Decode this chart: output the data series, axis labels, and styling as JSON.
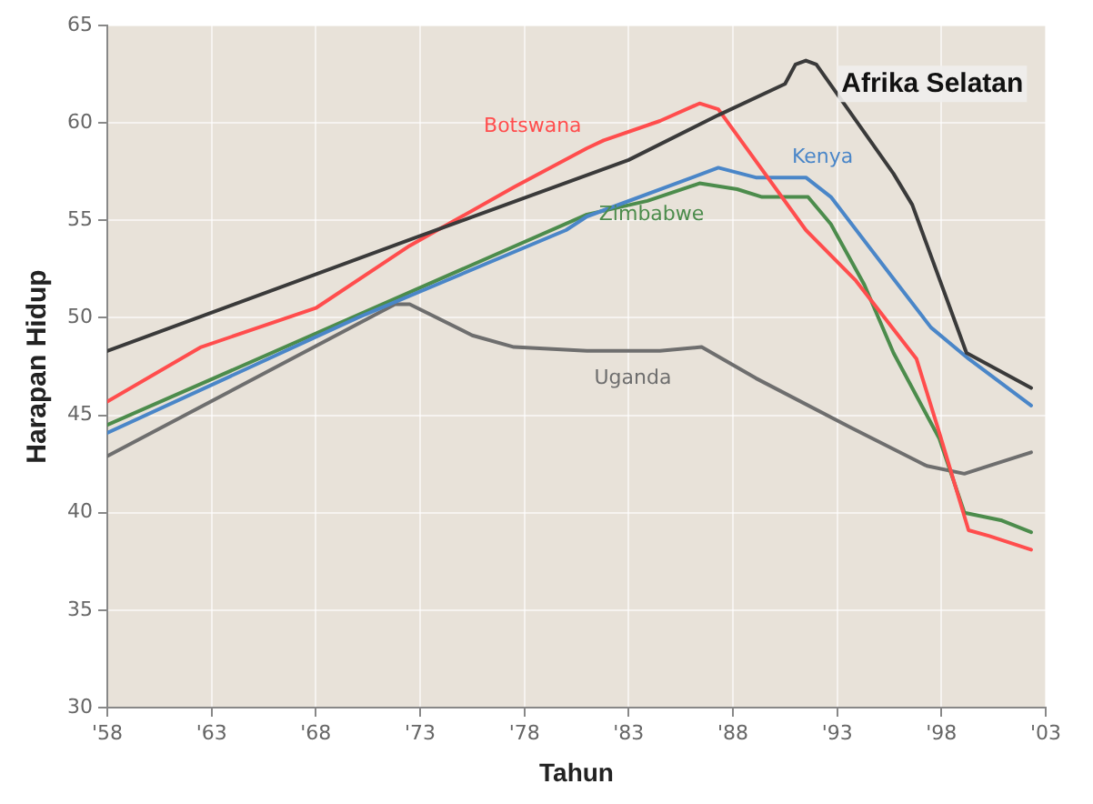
{
  "chart_data": {
    "type": "line",
    "xlabel": "Tahun",
    "ylabel": "Harapan Hidup",
    "xlim": [
      1958,
      2003
    ],
    "ylim": [
      30,
      65
    ],
    "xticks": [
      {
        "value": 1958,
        "label": "'58"
      },
      {
        "value": 1963,
        "label": "'63"
      },
      {
        "value": 1968,
        "label": "'68"
      },
      {
        "value": 1973,
        "label": "'73"
      },
      {
        "value": 1978,
        "label": "'78"
      },
      {
        "value": 1983,
        "label": "'83"
      },
      {
        "value": 1988,
        "label": "'88"
      },
      {
        "value": 1993,
        "label": "'93"
      },
      {
        "value": 1998,
        "label": "'98"
      },
      {
        "value": 2003,
        "label": "'03"
      }
    ],
    "yticks": [
      30,
      35,
      40,
      45,
      50,
      55,
      60,
      65
    ],
    "grid": true,
    "legend": false,
    "marker": "none",
    "line_style": "solid",
    "series": [
      {
        "name": "Afrika Selatan",
        "color": "#3a3a3a",
        "x": [
          1958,
          1973,
          1983,
          1987.3,
          1990.5,
          1991,
          1991.5,
          1992,
          1995.7,
          1996.6,
          1999.2,
          2002.3
        ],
        "values": [
          48.3,
          54.2,
          58.1,
          60.4,
          62,
          63,
          63.2,
          63,
          57.4,
          55.8,
          48.2,
          46.4
        ]
      },
      {
        "name": "Botswana",
        "color": "#ff4d4d",
        "x": [
          1958,
          1962.5,
          1968,
          1972.5,
          1977.5,
          1981,
          1981.8,
          1984.5,
          1986.4,
          1987.3,
          1991.5,
          1993.9,
          1996.8,
          1997.9,
          1999.3,
          2000.3,
          2002.3
        ],
        "values": [
          45.7,
          48.5,
          50.5,
          53.7,
          56.7,
          58.7,
          59.1,
          60.1,
          61,
          60.7,
          54.5,
          51.9,
          47.9,
          44.1,
          39.1,
          38.8,
          38.1
        ]
      },
      {
        "name": "Kenya",
        "color": "#4a86c8",
        "x": [
          1958,
          1970,
          1980,
          1981,
          1987.3,
          1989.1,
          1991.5,
          1992.7,
          1995.7,
          1997.5,
          1999.3,
          2002.3
        ],
        "values": [
          44.1,
          50,
          54.5,
          55.2,
          57.7,
          57.2,
          57.2,
          56.2,
          52,
          49.5,
          47.9,
          45.5
        ]
      },
      {
        "name": "Zimbabwe",
        "color": "#4c8c4c",
        "x": [
          1958,
          1981,
          1983.9,
          1986.4,
          1988.2,
          1989.4,
          1991.6,
          1992.7,
          1994.3,
          1995.7,
          1997.9,
          1999.1,
          2000.9,
          2002.3
        ],
        "values": [
          44.5,
          55.3,
          56,
          56.9,
          56.6,
          56.2,
          56.2,
          54.8,
          51.7,
          48.2,
          43.8,
          40,
          39.6,
          39
        ]
      },
      {
        "name": "Uganda",
        "color": "#6e6e6e",
        "x": [
          1958,
          1971.8,
          1972.5,
          1975.5,
          1977.5,
          1981,
          1984.5,
          1986.5,
          1989.1,
          1993.6,
          1997.3,
          1999.1,
          2002.3
        ],
        "values": [
          42.9,
          50.7,
          50.7,
          49.1,
          48.5,
          48.3,
          48.3,
          48.5,
          46.9,
          44.4,
          42.4,
          42,
          43.1
        ]
      }
    ]
  }
}
